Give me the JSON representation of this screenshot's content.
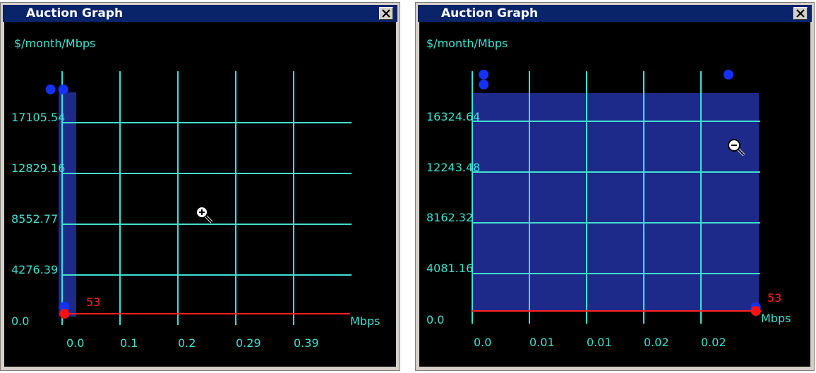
{
  "windows": [
    {
      "title": "Auction Graph",
      "close_icon": "close-x-icon",
      "cursor_icon": "zoom-in-icon",
      "chart_data": {
        "type": "scatter",
        "ylabel": "$/month/Mbps",
        "xlabel": "Mbps",
        "y_ticks": [
          "0.0",
          "4276.39",
          "8552.77",
          "12829.16",
          "17105.54"
        ],
        "x_ticks": [
          "0.0",
          "0.1",
          "0.2",
          "0.29",
          "0.39"
        ],
        "highlight_label": "53",
        "points": [
          {
            "x": -0.02,
            "y": 18900,
            "color": "blue"
          },
          {
            "x": 0.002,
            "y": 18900,
            "color": "blue"
          },
          {
            "x": 0.004,
            "y": 600,
            "color": "blue"
          },
          {
            "x": 0.004,
            "y": 0,
            "color": "red"
          }
        ]
      }
    },
    {
      "title": "Auction Graph",
      "close_icon": "close-x-icon",
      "cursor_icon": "zoom-out-icon",
      "chart_data": {
        "type": "scatter",
        "ylabel": "$/month/Mbps",
        "xlabel": "Mbps",
        "y_ticks": [
          "0.0",
          "4081.16",
          "8162.32",
          "12243.48",
          "16324.64"
        ],
        "x_ticks": [
          "0.0",
          "0.01",
          "0.01",
          "0.02",
          "0.02"
        ],
        "highlight_label": "53",
        "points": [
          {
            "x": 0.001,
            "y": 19000,
            "color": "blue"
          },
          {
            "x": 0.001,
            "y": 18200,
            "color": "blue"
          },
          {
            "x": 0.0224,
            "y": 19000,
            "color": "blue"
          },
          {
            "x": 0.0248,
            "y": 300,
            "color": "blue"
          },
          {
            "x": 0.0248,
            "y": 0,
            "color": "red"
          }
        ]
      }
    }
  ]
}
